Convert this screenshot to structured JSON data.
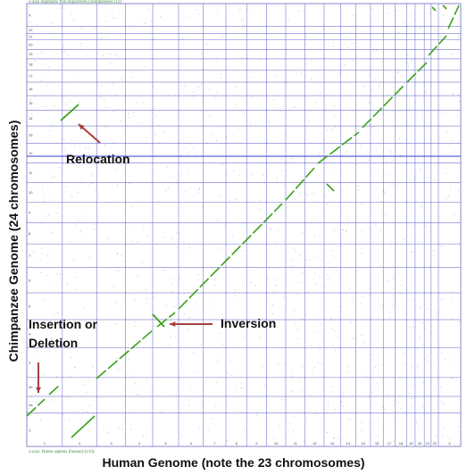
{
  "axes": {
    "x_title": "Human Genome (note the 23 chromosomes)",
    "y_title": "Chimpanzee Genome (24 chromosomes)"
  },
  "captions": {
    "top": "y-axis organism: Pan troglodytes (chimpanzee) (v2)",
    "bottom": "x-axis: Homo sapiens (human) (v13)"
  },
  "annotations": {
    "relocation": "Relocation",
    "inversion": "Inversion",
    "insertion_line1": "Insertion or",
    "insertion_line2": "Deletion"
  },
  "human_chromosomes": [
    "1",
    "2",
    "3",
    "4",
    "5",
    "6",
    "7",
    "8",
    "9",
    "10",
    "11",
    "12",
    "13",
    "14",
    "15",
    "16",
    "17",
    "18",
    "19",
    "20",
    "21",
    "22",
    "X"
  ],
  "chimp_chromosomes": [
    "1",
    "2a",
    "2b",
    "3",
    "4",
    "5",
    "6",
    "7",
    "8",
    "9",
    "10",
    "11",
    "12",
    "13",
    "14",
    "15",
    "16",
    "17",
    "18",
    "19",
    "20",
    "21",
    "22",
    "X"
  ],
  "colors": {
    "synteny": "#3aa01a",
    "grid": "#5a5ac8",
    "highlight_line": "#3a3ad0",
    "arrow": "#a84040",
    "noise": "#555555"
  }
}
